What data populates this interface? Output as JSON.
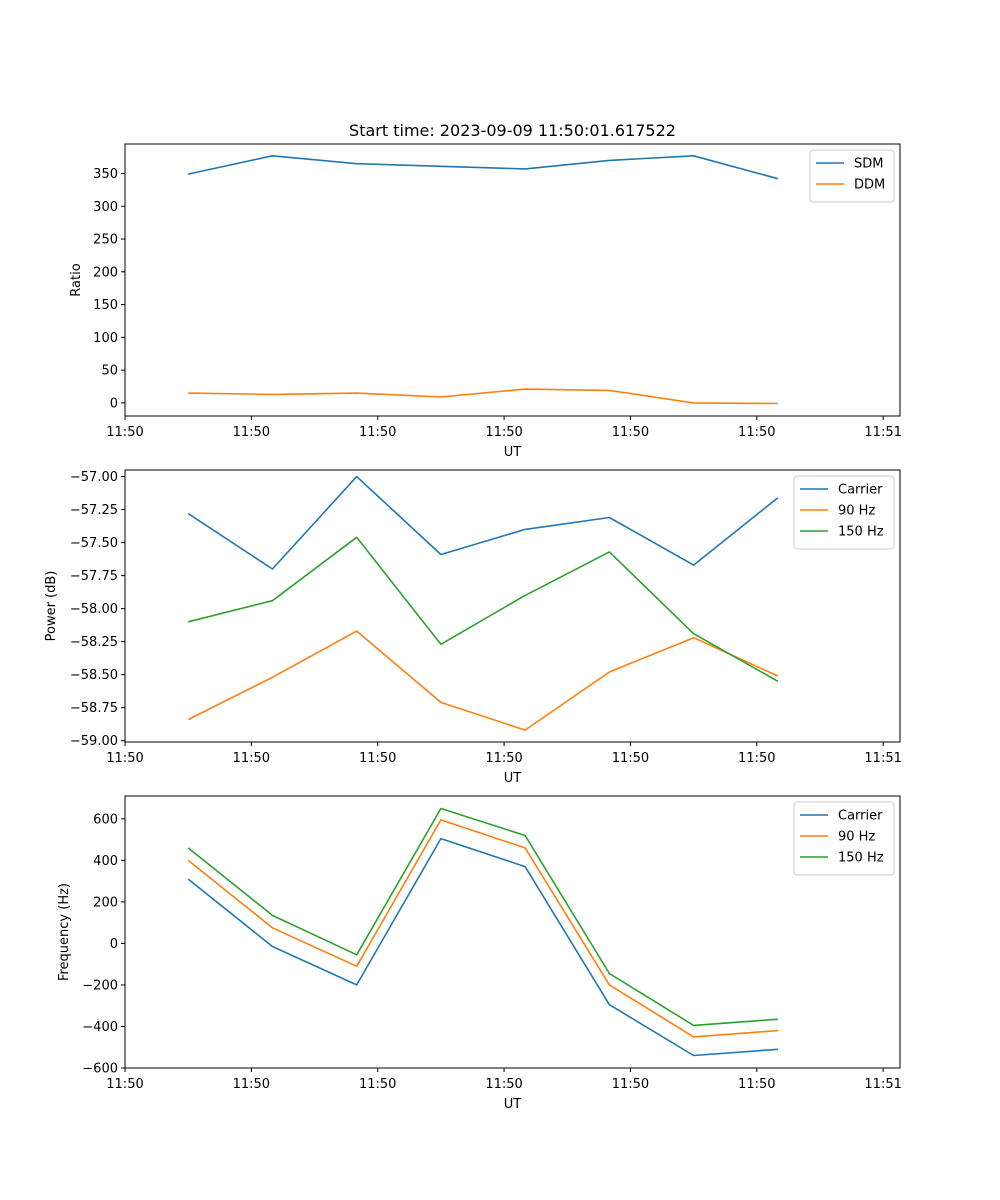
{
  "title": "Start time: 2023-09-09 11:50:01.617522",
  "colors": {
    "blue": "#1f77b4",
    "orange": "#ff7f0e",
    "green": "#2ca02c"
  },
  "chart_data": [
    {
      "type": "line",
      "ylabel": "Ratio",
      "xlabel": "UT",
      "xlim": [
        0,
        9.2
      ],
      "ylim": [
        -20,
        395
      ],
      "x": [
        0.75,
        1.75,
        2.75,
        3.75,
        4.75,
        5.75,
        6.75,
        7.75
      ],
      "xticks": [
        0,
        1.5,
        3,
        4.5,
        6,
        7.5,
        9
      ],
      "xtick_labels": [
        "11:50",
        "11:50",
        "11:50",
        "11:50",
        "11:50",
        "11:50",
        "11:51"
      ],
      "yticks": [
        0,
        50,
        100,
        150,
        200,
        250,
        300,
        350
      ],
      "ytick_labels": [
        "0",
        "50",
        "100",
        "150",
        "200",
        "250",
        "300",
        "350"
      ],
      "legend": "top-right",
      "series": [
        {
          "name": "SDM",
          "color": "#1f77b4",
          "values": [
            349,
            377,
            365,
            361,
            357,
            370,
            377,
            342
          ]
        },
        {
          "name": "DDM",
          "color": "#ff7f0e",
          "values": [
            15,
            13,
            15,
            9,
            21,
            19,
            0,
            -1
          ]
        }
      ]
    },
    {
      "type": "line",
      "ylabel": "Power (dB)",
      "xlabel": "UT",
      "xlim": [
        0,
        9.2
      ],
      "ylim": [
        -59.01,
        -56.95
      ],
      "x": [
        0.75,
        1.75,
        2.75,
        3.75,
        4.75,
        5.75,
        6.75,
        7.75
      ],
      "xticks": [
        0,
        1.5,
        3,
        4.5,
        6,
        7.5,
        9
      ],
      "xtick_labels": [
        "11:50",
        "11:50",
        "11:50",
        "11:50",
        "11:50",
        "11:50",
        "11:51"
      ],
      "yticks": [
        -59.0,
        -58.75,
        -58.5,
        -58.25,
        -58.0,
        -57.75,
        -57.5,
        -57.25,
        -57.0
      ],
      "ytick_labels": [
        "−59.00",
        "−58.75",
        "−58.50",
        "−58.25",
        "−58.00",
        "−57.75",
        "−57.50",
        "−57.25",
        "−57.00"
      ],
      "legend": "top-right",
      "series": [
        {
          "name": "Carrier",
          "color": "#1f77b4",
          "values": [
            -57.28,
            -57.7,
            -57.0,
            -57.59,
            -57.4,
            -57.31,
            -57.67,
            -57.16
          ]
        },
        {
          "name": "90 Hz",
          "color": "#ff7f0e",
          "values": [
            -58.84,
            -58.52,
            -58.17,
            -58.71,
            -58.92,
            -58.48,
            -58.22,
            -58.51
          ]
        },
        {
          "name": "150 Hz",
          "color": "#2ca02c",
          "values": [
            -58.1,
            -57.94,
            -57.46,
            -58.27,
            -57.9,
            -57.57,
            -58.19,
            -58.55
          ]
        }
      ]
    },
    {
      "type": "line",
      "ylabel": "Frequency (Hz)",
      "xlabel": "UT",
      "xlim": [
        0,
        9.2
      ],
      "ylim": [
        -600,
        710
      ],
      "x": [
        0.75,
        1.75,
        2.75,
        3.75,
        4.75,
        5.75,
        6.75,
        7.75
      ],
      "xticks": [
        0,
        1.5,
        3,
        4.5,
        6,
        7.5,
        9
      ],
      "xtick_labels": [
        "11:50",
        "11:50",
        "11:50",
        "11:50",
        "11:50",
        "11:50",
        "11:51"
      ],
      "yticks": [
        -600,
        -400,
        -200,
        0,
        200,
        400,
        600
      ],
      "ytick_labels": [
        "−600",
        "−400",
        "−200",
        "0",
        "200",
        "400",
        "600"
      ],
      "legend": "top-right",
      "series": [
        {
          "name": "Carrier",
          "color": "#1f77b4",
          "values": [
            310,
            -15,
            -200,
            505,
            370,
            -295,
            -540,
            -510
          ]
        },
        {
          "name": "90 Hz",
          "color": "#ff7f0e",
          "values": [
            400,
            75,
            -110,
            595,
            460,
            -200,
            -450,
            -420
          ]
        },
        {
          "name": "150 Hz",
          "color": "#2ca02c",
          "values": [
            460,
            135,
            -55,
            650,
            520,
            -145,
            -395,
            -365
          ]
        }
      ]
    }
  ]
}
